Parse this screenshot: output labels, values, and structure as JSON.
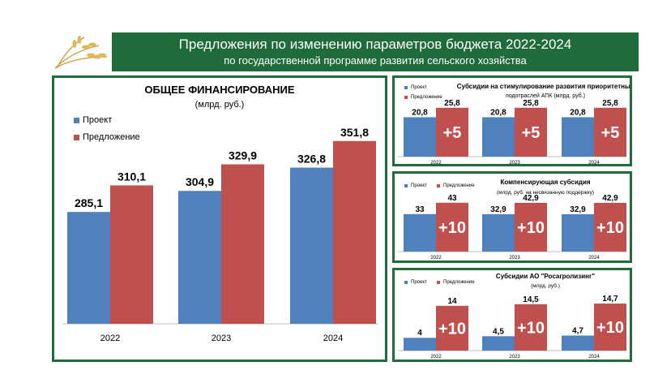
{
  "header": {
    "title": "Предложения по изменению параметров бюджета 2022-2024",
    "subtitle": "по государственной программе развития сельского хозяйства"
  },
  "colors": {
    "project": "#4f81bd",
    "proposal": "#c0504d",
    "green": "#1f6b3a",
    "delta_text": "#ffffff"
  },
  "chart_data": [
    {
      "type": "bar",
      "title": "ОБЩЕЕ ФИНАНСИРОВАНИЕ",
      "subtitle": "(млрд. руб.)",
      "categories": [
        "2022",
        "2023",
        "2024"
      ],
      "series": [
        {
          "name": "Проект",
          "values": [
            285.1,
            304.9,
            326.8
          ],
          "labels": [
            "285,1",
            "304,9",
            "326,8"
          ]
        },
        {
          "name": "Предложение",
          "values": [
            310.1,
            329.9,
            351.8
          ],
          "labels": [
            "310,1",
            "329,9",
            "351,8"
          ]
        }
      ],
      "ylim": [
        180,
        360
      ],
      "legend": "top-left"
    },
    {
      "type": "bar",
      "title": "Субсидии на стимулирование развития приоритетных",
      "subtitle": "подотраслей АПК (млрд. руб.)",
      "categories": [
        "2022",
        "2023",
        "2024"
      ],
      "series": [
        {
          "name": "Проект",
          "values": [
            20.8,
            20.8,
            20.8
          ],
          "labels": [
            "20,8",
            "20,8",
            "20,8"
          ]
        },
        {
          "name": "Предложение",
          "values": [
            25.8,
            25.8,
            25.8
          ],
          "labels": [
            "25,8",
            "25,8",
            "25,8"
          ]
        }
      ],
      "deltas": [
        "+5",
        "+5",
        "+5"
      ],
      "ylim": [
        0,
        30
      ],
      "legend": "top-left"
    },
    {
      "type": "bar",
      "title": "Компенсирующая субсидия",
      "subtitle": "(млрд. руб. на несвязанную поддержку)",
      "categories": [
        "2022",
        "2023",
        "2024"
      ],
      "series": [
        {
          "name": "Проект",
          "values": [
            33,
            32.9,
            32.9
          ],
          "labels": [
            "33",
            "32,9",
            "32,9"
          ]
        },
        {
          "name": "Предложение",
          "values": [
            43,
            42.9,
            42.9
          ],
          "labels": [
            "43",
            "42,9",
            "42,9"
          ]
        }
      ],
      "deltas": [
        "+10",
        "+10",
        "+10"
      ],
      "ylim": [
        0,
        50
      ],
      "legend": "top-left"
    },
    {
      "type": "bar",
      "title": "Субсидии АО \"Росагролизинг\"",
      "subtitle": "(млрд. руб.)",
      "categories": [
        "2022",
        "2023",
        "2024"
      ],
      "series": [
        {
          "name": "Проект",
          "values": [
            4,
            4.5,
            4.7
          ],
          "labels": [
            "4",
            "4,5",
            "4,7"
          ]
        },
        {
          "name": "Предложение",
          "values": [
            14,
            14.5,
            14.7
          ],
          "labels": [
            "14",
            "14,5",
            "14,7"
          ]
        }
      ],
      "deltas": [
        "+10",
        "+10",
        "+10"
      ],
      "ylim": [
        0,
        17
      ],
      "legend": "top-left"
    }
  ]
}
